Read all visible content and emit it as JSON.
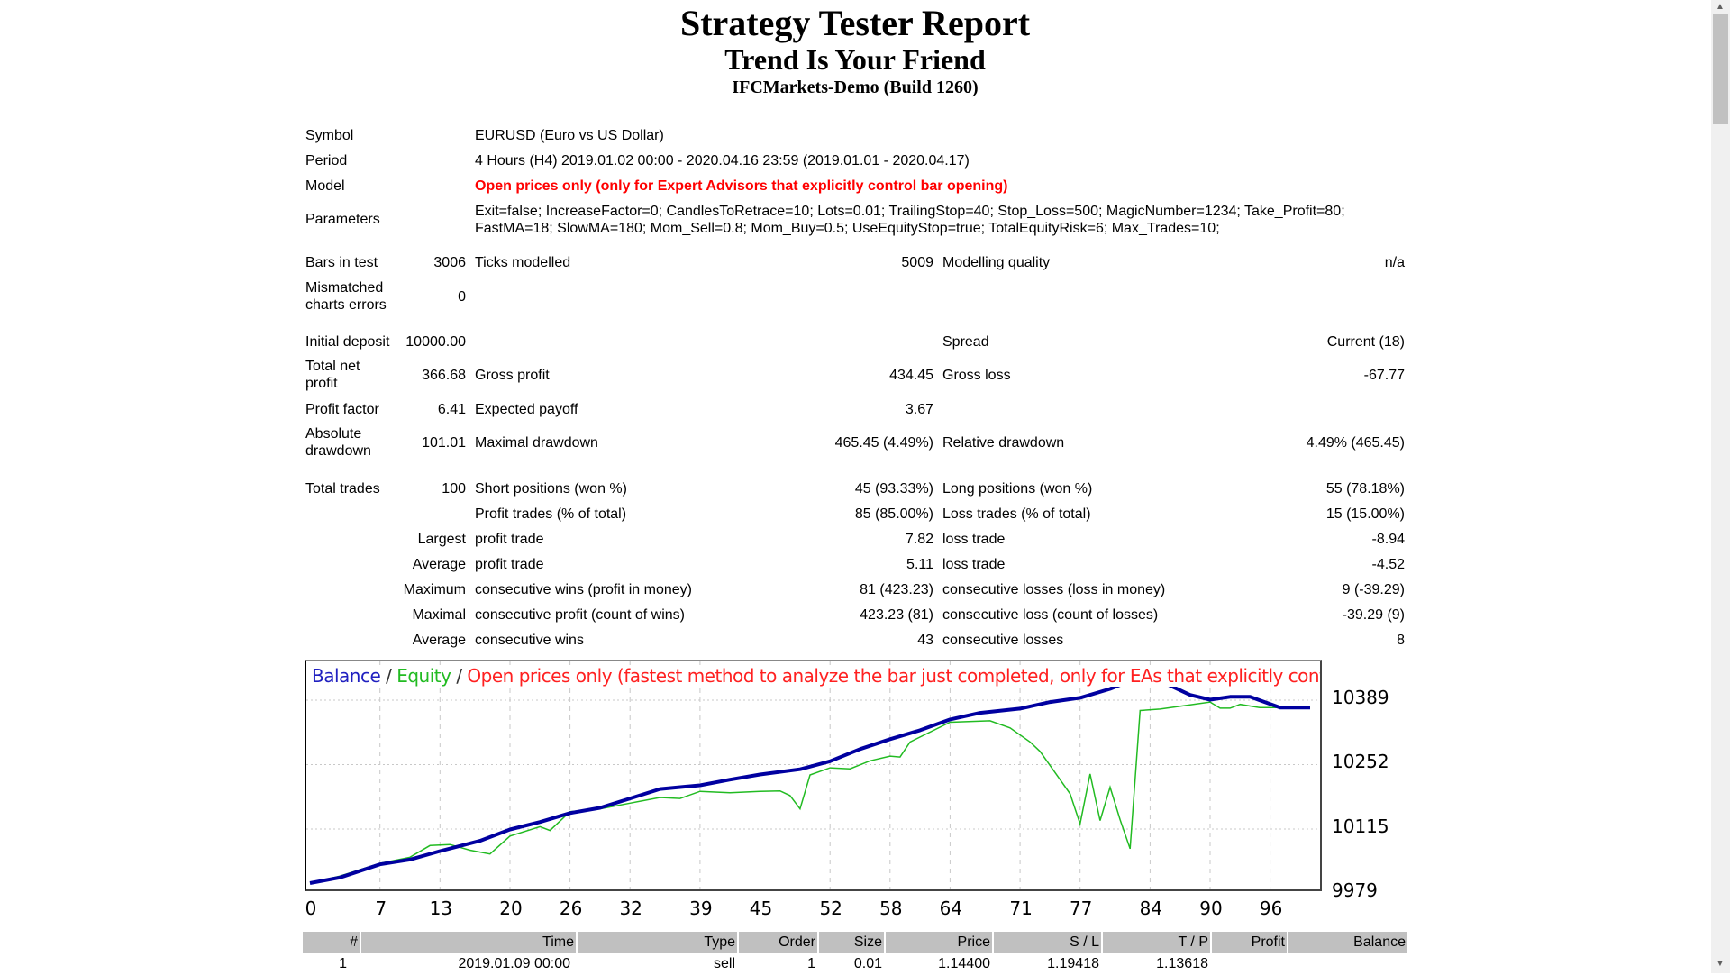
{
  "header": {
    "title": "Strategy Tester Report",
    "subtitle": "Trend Is Your Friend",
    "server": "IFCMarkets-Demo (Build 1260)"
  },
  "info": {
    "symbol_label": "Symbol",
    "symbol": "EURUSD (Euro vs US Dollar)",
    "period_label": "Period",
    "period": "4 Hours (H4) 2019.01.02 00:00 - 2020.04.16 23:59 (2019.01.01 - 2020.04.17)",
    "model_label": "Model",
    "model": "Open prices only (only for Expert Advisors that explicitly control bar opening)",
    "parameters_label": "Parameters",
    "parameters_line1": "Exit=false; IncreaseFactor=0; CandlesToRetrace=10; Lots=0.01; TrailingStop=40; Stop_Loss=500; MagicNumber=1234; Take_Profit=80;",
    "parameters_line2": "FastMA=18; SlowMA=180; Mom_Sell=0.8; Mom_Buy=0.5; UseEquityStop=true; TotalEquityRisk=6; Max_Trades=10;"
  },
  "stats": {
    "bars_label": "Bars in test",
    "bars": "3006",
    "ticks_label": "Ticks modelled",
    "ticks": "5009",
    "quality_label": "Modelling quality",
    "quality": "n/a",
    "mismatch_label": "Mismatched charts errors",
    "mismatch": "0",
    "deposit_label": "Initial deposit",
    "deposit": "10000.00",
    "spread_label": "Spread",
    "spread": "Current (18)",
    "net_label": "Total net profit",
    "net": "366.68",
    "gross_profit_label": "Gross profit",
    "gross_profit": "434.45",
    "gross_loss_label": "Gross loss",
    "gross_loss": "-67.77",
    "pf_label": "Profit factor",
    "pf": "6.41",
    "payoff_label": "Expected payoff",
    "payoff": "3.67",
    "abs_dd_label": "Absolute drawdown",
    "abs_dd": "101.01",
    "max_dd_label": "Maximal drawdown",
    "max_dd": "465.45 (4.49%)",
    "rel_dd_label": "Relative drawdown",
    "rel_dd": "4.49% (465.45)",
    "trades_label": "Total trades",
    "trades": "100",
    "short_label": "Short positions (won %)",
    "short": "45 (93.33%)",
    "long_label": "Long positions (won %)",
    "long": "55 (78.18%)",
    "profit_trades_label": "Profit trades (% of total)",
    "profit_trades": "85 (85.00%)",
    "loss_trades_label": "Loss trades (% of total)",
    "loss_trades": "15 (15.00%)",
    "largest": "Largest",
    "largest_profit_label": "profit trade",
    "largest_profit": "7.82",
    "largest_loss_label": "loss trade",
    "largest_loss": "-8.94",
    "average": "Average",
    "avg_profit_label": "profit trade",
    "avg_profit": "5.11",
    "avg_loss_label": "loss trade",
    "avg_loss": "-4.52",
    "maximum": "Maximum",
    "max_wins_label": "consecutive wins (profit in money)",
    "max_wins": "81 (423.23)",
    "max_losses_label": "consecutive losses (loss in money)",
    "max_losses": "9 (-39.29)",
    "maximal": "Maximal",
    "maximal_profit_label": "consecutive profit (count of wins)",
    "maximal_profit": "423.23 (81)",
    "maximal_loss_label": "consecutive loss (count of losses)",
    "maximal_loss": "-39.29 (9)",
    "average2": "Average",
    "avg_wins_label": "consecutive wins",
    "avg_wins": "43",
    "avg_losses_label": "consecutive losses",
    "avg_losses": "8"
  },
  "chart_data": {
    "type": "line",
    "legend_balance": "Balance",
    "legend_sep1": " / ",
    "legend_equity": "Equity",
    "legend_sep2": " / ",
    "legend_model": "Open prices only (fastest method to analyze the bar just completed, only for EAs that explicitly control b",
    "colors": {
      "balance": "#0000a0",
      "equity": "#22bb22",
      "model": "#ff0000"
    },
    "x_ticks": [
      0,
      7,
      13,
      20,
      26,
      32,
      39,
      45,
      52,
      58,
      64,
      71,
      77,
      84,
      90,
      96
    ],
    "y_ticks": [
      10389,
      10252,
      10115,
      9979
    ],
    "xlim": [
      0,
      100
    ],
    "ylim": [
      9979,
      10470
    ],
    "series": [
      {
        "name": "Balance",
        "points": [
          [
            0,
            10000
          ],
          [
            3,
            10012
          ],
          [
            7,
            10040
          ],
          [
            10,
            10050
          ],
          [
            13,
            10068
          ],
          [
            17,
            10090
          ],
          [
            20,
            10114
          ],
          [
            23,
            10130
          ],
          [
            26,
            10149
          ],
          [
            29,
            10160
          ],
          [
            32,
            10180
          ],
          [
            35,
            10200
          ],
          [
            39,
            10208
          ],
          [
            42,
            10220
          ],
          [
            45,
            10231
          ],
          [
            49,
            10242
          ],
          [
            52,
            10259
          ],
          [
            55,
            10285
          ],
          [
            58,
            10306
          ],
          [
            61,
            10325
          ],
          [
            64,
            10348
          ],
          [
            67,
            10362
          ],
          [
            71,
            10371
          ],
          [
            74,
            10385
          ],
          [
            77,
            10394
          ],
          [
            80,
            10413
          ],
          [
            82,
            10430
          ],
          [
            84,
            10440
          ],
          [
            86,
            10420
          ],
          [
            88,
            10400
          ],
          [
            90,
            10390
          ],
          [
            92,
            10396
          ],
          [
            94,
            10396
          ],
          [
            97,
            10373
          ],
          [
            100,
            10373
          ]
        ]
      },
      {
        "name": "Equity",
        "points": [
          [
            0,
            10000
          ],
          [
            3,
            10015
          ],
          [
            7,
            10042
          ],
          [
            10,
            10055
          ],
          [
            12,
            10080
          ],
          [
            14,
            10082
          ],
          [
            16,
            10070
          ],
          [
            18,
            10062
          ],
          [
            20,
            10100
          ],
          [
            23,
            10120
          ],
          [
            24,
            10112
          ],
          [
            26,
            10152
          ],
          [
            29,
            10158
          ],
          [
            32,
            10170
          ],
          [
            35,
            10182
          ],
          [
            37,
            10180
          ],
          [
            39,
            10195
          ],
          [
            42,
            10192
          ],
          [
            45,
            10195
          ],
          [
            47,
            10196
          ],
          [
            48,
            10186
          ],
          [
            49,
            10158
          ],
          [
            50,
            10230
          ],
          [
            52,
            10245
          ],
          [
            54,
            10243
          ],
          [
            56,
            10260
          ],
          [
            58,
            10270
          ],
          [
            59,
            10268
          ],
          [
            60,
            10300
          ],
          [
            64,
            10342
          ],
          [
            68,
            10345
          ],
          [
            70,
            10330
          ],
          [
            72,
            10300
          ],
          [
            73,
            10280
          ],
          [
            75,
            10220
          ],
          [
            76,
            10190
          ],
          [
            77,
            10126
          ],
          [
            78,
            10232
          ],
          [
            79,
            10133
          ],
          [
            80,
            10204
          ],
          [
            81,
            10135
          ],
          [
            82,
            10073
          ],
          [
            83,
            10367
          ],
          [
            85,
            10370
          ],
          [
            90,
            10385
          ],
          [
            91,
            10372
          ],
          [
            92,
            10372
          ],
          [
            93,
            10380
          ],
          [
            95,
            10373
          ],
          [
            100,
            10373
          ]
        ]
      }
    ]
  },
  "trades_table": {
    "headers": [
      "#",
      "Time",
      "Type",
      "Order",
      "Size",
      "Price",
      "S / L",
      "T / P",
      "Profit",
      "Balance"
    ],
    "rows": [
      [
        "1",
        "2019.01.09 00:00",
        "sell",
        "1",
        "0.01",
        "1.14400",
        "1.19418",
        "1.13618",
        "",
        ""
      ]
    ]
  }
}
